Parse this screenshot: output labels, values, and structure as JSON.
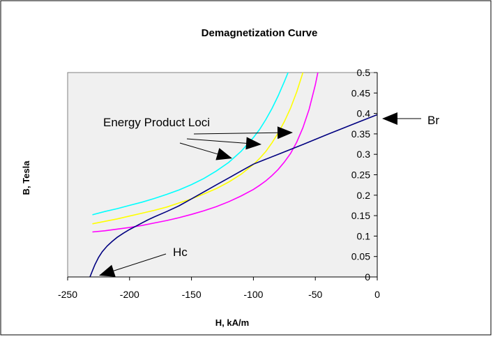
{
  "chart_data": {
    "type": "line",
    "title": "Demagnetization Curve",
    "xlabel": "H, kA/m",
    "ylabel": "B, Tesla",
    "xlim": [
      -250,
      0
    ],
    "ylim": [
      0,
      0.5
    ],
    "xticks": [
      -250,
      -200,
      -150,
      -100,
      -50,
      0
    ],
    "yticks": [
      0,
      0.05,
      0.1,
      0.15,
      0.2,
      0.25,
      0.3,
      0.35,
      0.4,
      0.45,
      0.5
    ],
    "xtick_labels": [
      "-250",
      "-200",
      "-150",
      "-100",
      "-50",
      "0"
    ],
    "ytick_labels": [
      "0",
      "0.05",
      "0.1",
      "0.15",
      "0.2",
      "0.25",
      "0.3",
      "0.35",
      "0.4",
      "0.45",
      "0.5"
    ],
    "grid": false,
    "y_axis_side": "right",
    "series": [
      {
        "color": "#00FFFF",
        "x": [
          -230,
          -220,
          -210,
          -200,
          -190,
          -180,
          -170,
          -160,
          -150,
          -140,
          -130,
          -120,
          -110,
          -100,
          -95,
          -90,
          -85,
          -80,
          -75,
          -72
        ],
        "y": [
          0.152,
          0.16,
          0.167,
          0.175,
          0.183,
          0.192,
          0.202,
          0.213,
          0.226,
          0.241,
          0.259,
          0.28,
          0.307,
          0.341,
          0.361,
          0.385,
          0.412,
          0.443,
          0.478,
          0.5
        ]
      },
      {
        "color": "#FFFF00",
        "x": [
          -230,
          -220,
          -210,
          -200,
          -190,
          -180,
          -170,
          -160,
          -150,
          -140,
          -130,
          -120,
          -110,
          -100,
          -95,
          -90,
          -85,
          -80,
          -75,
          -70,
          -65,
          -60
        ],
        "y": [
          0.13,
          0.136,
          0.142,
          0.149,
          0.156,
          0.163,
          0.171,
          0.181,
          0.191,
          0.203,
          0.216,
          0.232,
          0.251,
          0.275,
          0.29,
          0.307,
          0.328,
          0.352,
          0.38,
          0.413,
          0.453,
          0.5
        ]
      },
      {
        "color": "#FF00FF",
        "x": [
          -230,
          -220,
          -210,
          -200,
          -190,
          -180,
          -170,
          -160,
          -150,
          -140,
          -130,
          -120,
          -110,
          -100,
          -95,
          -90,
          -85,
          -80,
          -75,
          -70,
          -65,
          -60,
          -55,
          -50,
          -48
        ],
        "y": [
          0.11,
          0.113,
          0.117,
          0.121,
          0.126,
          0.132,
          0.138,
          0.145,
          0.153,
          0.162,
          0.172,
          0.184,
          0.198,
          0.214,
          0.224,
          0.235,
          0.248,
          0.263,
          0.281,
          0.302,
          0.33,
          0.365,
          0.41,
          0.47,
          0.5
        ]
      },
      {
        "color": "#000080",
        "x": [
          -232,
          -230,
          -228,
          -225,
          -222,
          -218,
          -214,
          -210,
          -205,
          -200,
          -195,
          -190,
          -185,
          -180,
          -170,
          -160,
          -150,
          -140,
          -130,
          -120,
          -110,
          -100,
          -80,
          -60,
          -40,
          -20,
          0
        ],
        "y": [
          0.0,
          0.015,
          0.03,
          0.048,
          0.062,
          0.076,
          0.087,
          0.097,
          0.107,
          0.116,
          0.124,
          0.132,
          0.14,
          0.147,
          0.16,
          0.174,
          0.191,
          0.208,
          0.225,
          0.242,
          0.259,
          0.276,
          0.3,
          0.324,
          0.349,
          0.373,
          0.397
        ]
      }
    ],
    "annotations": [
      {
        "text": "Energy Product Loci"
      },
      {
        "text": "Br"
      },
      {
        "text": "Hc"
      }
    ]
  }
}
